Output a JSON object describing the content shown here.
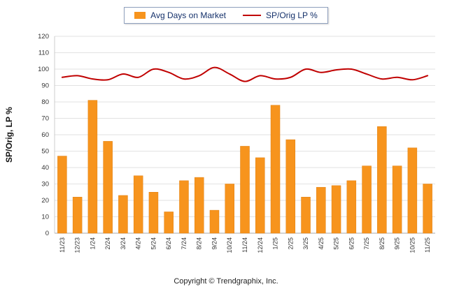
{
  "chart_data": {
    "type": "bar+line",
    "categories": [
      "11/23",
      "12/23",
      "1/24",
      "2/24",
      "3/24",
      "4/24",
      "5/24",
      "6/24",
      "7/24",
      "8/24",
      "9/24",
      "10/24",
      "11/24",
      "12/24",
      "1/25",
      "2/25",
      "3/25",
      "4/25",
      "5/25",
      "6/25",
      "7/25",
      "8/25",
      "9/25",
      "10/25",
      "11/25"
    ],
    "series": [
      {
        "name": "Avg Days on Market",
        "type": "bar",
        "color": "#F7941D",
        "values": [
          47,
          22,
          81,
          56,
          23,
          35,
          25,
          13,
          32,
          34,
          14,
          30,
          53,
          46,
          78,
          57,
          22,
          28,
          29,
          32,
          41,
          65,
          41,
          52,
          30
        ]
      },
      {
        "name": "SP/Orig LP %",
        "type": "line",
        "color": "#C00000",
        "values": [
          95,
          96,
          94,
          93.5,
          97,
          95,
          100,
          98,
          94,
          96,
          101,
          97,
          92.5,
          96,
          94,
          95,
          100,
          98,
          99.5,
          100,
          97,
          94,
          95,
          93.5,
          96
        ]
      }
    ],
    "ylabel": "SP/Orig, LP %",
    "ylim": [
      0,
      120
    ],
    "ytick_step": 10,
    "grid": true,
    "legend_position": "top"
  },
  "footer": {
    "copyright": "Copyright © Trendgraphix, Inc."
  }
}
